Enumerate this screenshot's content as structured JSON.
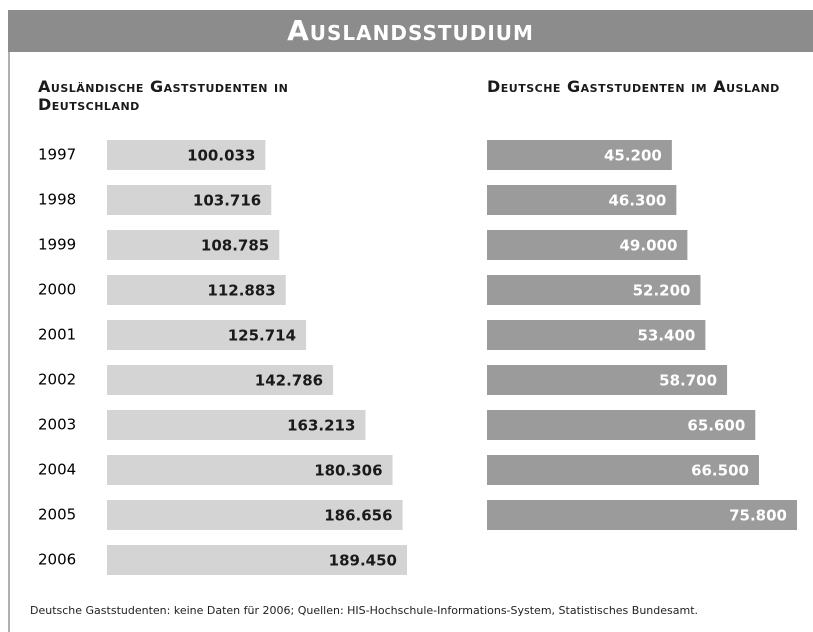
{
  "title": "Auslandsstudium",
  "footnote": "Deutsche Gaststudenten: keine Daten für 2006; Quellen: HIS-Hochschule-Informations-System, Statistisches Bundesamt.",
  "chart_data": [
    {
      "type": "bar",
      "orientation": "horizontal",
      "title": "Ausländische Gaststudenten in Deutschland",
      "categories": [
        "1997",
        "1998",
        "1999",
        "2000",
        "2001",
        "2002",
        "2003",
        "2004",
        "2005",
        "2006"
      ],
      "values": [
        100033,
        103716,
        108785,
        112883,
        125714,
        142786,
        163213,
        180306,
        186656,
        189450
      ],
      "value_labels": [
        "100.033",
        "103.716",
        "108.785",
        "112.883",
        "125.714",
        "142.786",
        "163.213",
        "180.306",
        "186.656",
        "189.450"
      ],
      "color": "#d4d4d4",
      "label_color": "#1a1a1a"
    },
    {
      "type": "bar",
      "orientation": "horizontal",
      "title": "Deutsche Gaststudenten im Ausland",
      "values": [
        45200,
        46300,
        49000,
        52200,
        53400,
        58700,
        65600,
        66500,
        75800
      ],
      "value_labels": [
        "45.200",
        "46.300",
        "49.000",
        "52.200",
        "53.400",
        "58.700",
        "65.600",
        "66.500",
        "75.800"
      ],
      "color": "#9b9b9b",
      "label_color": "#ffffff"
    }
  ]
}
